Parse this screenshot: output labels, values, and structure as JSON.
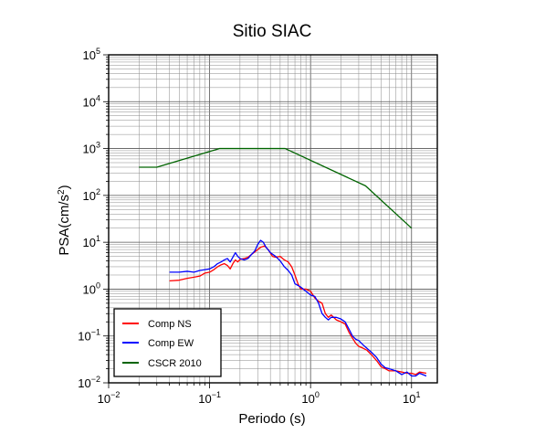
{
  "chart_data": {
    "type": "line",
    "title": "Sitio SIAC",
    "xlabel": "Periodo (s)",
    "ylabel_base": "PSA(cm/s",
    "ylabel_sup": "2",
    "ylabel_tail": ")",
    "x_scale": "log",
    "y_scale": "log",
    "xlim": [
      0.01,
      18
    ],
    "ylim": [
      0.01,
      100000
    ],
    "grid": true,
    "legend_position": "bottom-left",
    "x_ticks": [
      {
        "value": 0.01,
        "base": "10",
        "exp": "−2"
      },
      {
        "value": 0.1,
        "base": "10",
        "exp": "−1"
      },
      {
        "value": 1,
        "base": "10",
        "exp": "0"
      },
      {
        "value": 10,
        "base": "10",
        "exp": "1"
      }
    ],
    "y_ticks": [
      {
        "value": 0.01,
        "base": "10",
        "exp": "−2"
      },
      {
        "value": 0.1,
        "base": "10",
        "exp": "−1"
      },
      {
        "value": 1,
        "base": "10",
        "exp": "0"
      },
      {
        "value": 10,
        "base": "10",
        "exp": "1"
      },
      {
        "value": 100,
        "base": "10",
        "exp": "2"
      },
      {
        "value": 1000,
        "base": "10",
        "exp": "3"
      },
      {
        "value": 10000,
        "base": "10",
        "exp": "4"
      },
      {
        "value": 100000,
        "base": "10",
        "exp": "5"
      }
    ],
    "series": [
      {
        "name": "Comp NS",
        "color": "#ff0000",
        "points": [
          [
            0.04,
            1.5
          ],
          [
            0.05,
            1.55
          ],
          [
            0.06,
            1.7
          ],
          [
            0.07,
            1.8
          ],
          [
            0.08,
            1.9
          ],
          [
            0.09,
            2.2
          ],
          [
            0.1,
            2.3
          ],
          [
            0.11,
            2.6
          ],
          [
            0.12,
            3.0
          ],
          [
            0.13,
            3.3
          ],
          [
            0.14,
            3.5
          ],
          [
            0.15,
            3.2
          ],
          [
            0.16,
            2.7
          ],
          [
            0.17,
            3.5
          ],
          [
            0.18,
            4.2
          ],
          [
            0.19,
            3.8
          ],
          [
            0.2,
            4.3
          ],
          [
            0.22,
            4.5
          ],
          [
            0.24,
            4.8
          ],
          [
            0.26,
            5.5
          ],
          [
            0.28,
            6.2
          ],
          [
            0.3,
            7.0
          ],
          [
            0.32,
            7.8
          ],
          [
            0.35,
            8.3
          ],
          [
            0.38,
            7.0
          ],
          [
            0.42,
            5.0
          ],
          [
            0.45,
            4.8
          ],
          [
            0.5,
            5.0
          ],
          [
            0.55,
            4.2
          ],
          [
            0.6,
            3.8
          ],
          [
            0.65,
            3.0
          ],
          [
            0.7,
            2.0
          ],
          [
            0.75,
            1.3
          ],
          [
            0.8,
            1.0
          ],
          [
            0.9,
            1.0
          ],
          [
            1.0,
            0.9
          ],
          [
            1.1,
            0.65
          ],
          [
            1.2,
            0.55
          ],
          [
            1.3,
            0.5
          ],
          [
            1.4,
            0.3
          ],
          [
            1.5,
            0.25
          ],
          [
            1.6,
            0.28
          ],
          [
            1.8,
            0.22
          ],
          [
            2.0,
            0.2
          ],
          [
            2.2,
            0.18
          ],
          [
            2.4,
            0.12
          ],
          [
            2.6,
            0.09
          ],
          [
            2.8,
            0.07
          ],
          [
            3.0,
            0.06
          ],
          [
            3.3,
            0.055
          ],
          [
            3.6,
            0.05
          ],
          [
            4.0,
            0.04
          ],
          [
            4.5,
            0.03
          ],
          [
            5.0,
            0.022
          ],
          [
            5.5,
            0.02
          ],
          [
            6.0,
            0.018
          ],
          [
            7.0,
            0.018
          ],
          [
            8.0,
            0.017
          ],
          [
            9.0,
            0.016
          ],
          [
            10.0,
            0.016
          ],
          [
            11.0,
            0.015
          ],
          [
            12.0,
            0.017
          ],
          [
            14.0,
            0.016
          ]
        ]
      },
      {
        "name": "Comp EW",
        "color": "#0000ff",
        "points": [
          [
            0.04,
            2.3
          ],
          [
            0.05,
            2.3
          ],
          [
            0.06,
            2.4
          ],
          [
            0.07,
            2.3
          ],
          [
            0.08,
            2.5
          ],
          [
            0.09,
            2.6
          ],
          [
            0.1,
            2.7
          ],
          [
            0.11,
            3.0
          ],
          [
            0.12,
            3.5
          ],
          [
            0.13,
            3.8
          ],
          [
            0.14,
            4.2
          ],
          [
            0.15,
            4.5
          ],
          [
            0.16,
            3.8
          ],
          [
            0.17,
            4.8
          ],
          [
            0.18,
            6.0
          ],
          [
            0.19,
            5.0
          ],
          [
            0.2,
            4.5
          ],
          [
            0.22,
            4.2
          ],
          [
            0.24,
            4.5
          ],
          [
            0.26,
            5.5
          ],
          [
            0.28,
            6.5
          ],
          [
            0.3,
            9.0
          ],
          [
            0.32,
            11.0
          ],
          [
            0.34,
            10.0
          ],
          [
            0.36,
            8.0
          ],
          [
            0.4,
            6.0
          ],
          [
            0.45,
            5.0
          ],
          [
            0.5,
            4.0
          ],
          [
            0.55,
            3.0
          ],
          [
            0.6,
            2.5
          ],
          [
            0.65,
            2.0
          ],
          [
            0.7,
            1.3
          ],
          [
            0.75,
            1.2
          ],
          [
            0.8,
            1.1
          ],
          [
            0.9,
            0.9
          ],
          [
            1.0,
            0.75
          ],
          [
            1.1,
            0.7
          ],
          [
            1.2,
            0.5
          ],
          [
            1.3,
            0.3
          ],
          [
            1.4,
            0.25
          ],
          [
            1.5,
            0.22
          ],
          [
            1.6,
            0.25
          ],
          [
            1.8,
            0.25
          ],
          [
            2.0,
            0.23
          ],
          [
            2.2,
            0.2
          ],
          [
            2.4,
            0.14
          ],
          [
            2.6,
            0.1
          ],
          [
            2.8,
            0.085
          ],
          [
            3.0,
            0.08
          ],
          [
            3.3,
            0.065
          ],
          [
            3.6,
            0.055
          ],
          [
            4.0,
            0.045
          ],
          [
            4.5,
            0.035
          ],
          [
            5.0,
            0.025
          ],
          [
            5.5,
            0.021
          ],
          [
            6.0,
            0.02
          ],
          [
            7.0,
            0.018
          ],
          [
            8.0,
            0.015
          ],
          [
            9.0,
            0.017
          ],
          [
            10.0,
            0.014
          ],
          [
            11.0,
            0.014
          ],
          [
            12.0,
            0.016
          ],
          [
            14.0,
            0.014
          ]
        ]
      },
      {
        "name": "CSCR 2010",
        "color": "#006400",
        "points": [
          [
            0.02,
            400
          ],
          [
            0.03,
            400
          ],
          [
            0.125,
            1000
          ],
          [
            0.56,
            1000
          ],
          [
            3.5,
            160
          ],
          [
            10.0,
            20
          ]
        ]
      }
    ]
  }
}
